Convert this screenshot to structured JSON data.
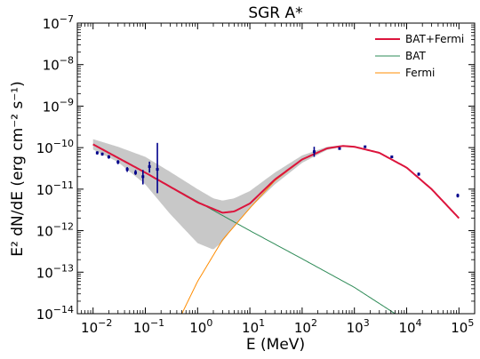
{
  "chart_data": {
    "type": "line",
    "title": "SGR A*",
    "xlabel": "E (MeV)",
    "ylabel": "E² dN/dE (erg cm⁻² s⁻¹)",
    "xscale": "log",
    "yscale": "log",
    "xlim": [
      0.005,
      200000
    ],
    "ylim": [
      1e-14,
      1e-07
    ],
    "x_ticks": [
      0.01,
      0.1,
      1,
      10,
      100,
      1000,
      10000,
      100000
    ],
    "x_tick_labels": [
      {
        "base": "10",
        "exp": "−2"
      },
      {
        "base": "10",
        "exp": "−1"
      },
      {
        "base": "10",
        "exp": "0"
      },
      {
        "base": "10",
        "exp": "1"
      },
      {
        "base": "10",
        "exp": "2"
      },
      {
        "base": "10",
        "exp": "3"
      },
      {
        "base": "10",
        "exp": "4"
      },
      {
        "base": "10",
        "exp": "5"
      }
    ],
    "y_ticks": [
      1e-14,
      1e-13,
      1e-12,
      1e-11,
      1e-10,
      1e-09,
      1e-08,
      1e-07
    ],
    "y_tick_labels": [
      {
        "base": "10",
        "exp": "−14"
      },
      {
        "base": "10",
        "exp": "−13"
      },
      {
        "base": "10",
        "exp": "−12"
      },
      {
        "base": "10",
        "exp": "−11"
      },
      {
        "base": "10",
        "exp": "−10"
      },
      {
        "base": "10",
        "exp": "−9"
      },
      {
        "base": "10",
        "exp": "−8"
      },
      {
        "base": "10",
        "exp": "−7"
      }
    ],
    "grid": false,
    "legend_position": "top-right",
    "series": [
      {
        "name": "BAT+Fermi",
        "color": "#dc143c",
        "x": [
          0.01,
          0.1,
          1,
          3,
          5,
          10,
          30,
          100,
          300,
          600,
          1000,
          3000,
          10000,
          30000,
          100000
        ],
        "y": [
          1.2e-10,
          2.5e-11,
          4.8e-12,
          2.7e-12,
          2.9e-12,
          4.5e-12,
          1.7e-11,
          5.2e-11,
          9.6e-11,
          1.1e-10,
          1.05e-10,
          7.5e-11,
          3.3e-11,
          1e-11,
          2e-12
        ]
      },
      {
        "name": "BAT",
        "color": "#2e8b57",
        "x": [
          0.01,
          0.1,
          1,
          10,
          100,
          1000,
          6000
        ],
        "y": [
          1.2e-10,
          2.5e-11,
          5e-12,
          1e-12,
          2.1e-13,
          4.3e-14,
          1e-14
        ]
      },
      {
        "name": "Fermi",
        "color": "#ff8c00",
        "x": [
          0.5,
          1,
          3,
          10,
          30,
          100,
          300,
          600,
          1000,
          3000,
          10000,
          30000,
          100000
        ],
        "y": [
          1e-14,
          6e-14,
          6e-13,
          3.5e-12,
          1.6e-11,
          5.1e-11,
          9.5e-11,
          1.1e-10,
          1.05e-10,
          7.5e-11,
          3.3e-11,
          1e-11,
          2e-12
        ]
      }
    ],
    "band": {
      "x": [
        0.01,
        0.03,
        0.1,
        0.3,
        1,
        2,
        3,
        5,
        10,
        30,
        100,
        300,
        600,
        1000
      ],
      "y_upper": [
        1.6e-10,
        1.05e-10,
        6e-11,
        2.6e-11,
        1e-11,
        6e-12,
        5.3e-12,
        6e-12,
        9e-12,
        2.5e-11,
        6.5e-11,
        1.05e-10,
        1.15e-10,
        1.1e-10
      ],
      "y_lower": [
        9e-11,
        4.5e-11,
        1.3e-11,
        2.5e-12,
        5e-13,
        3.5e-13,
        5.5e-13,
        1.3e-12,
        3.5e-12,
        1.3e-11,
        4.3e-11,
        8.8e-11,
        1.05e-10,
        1e-10
      ],
      "color": "#c8c8c8"
    },
    "points": {
      "color": "#00008b",
      "x": [
        0.012,
        0.015,
        0.02,
        0.03,
        0.045,
        0.065,
        0.09,
        0.12,
        0.17,
        170,
        520,
        1600,
        5200,
        17000,
        95000
      ],
      "y": [
        7.5e-11,
        7e-11,
        6e-11,
        4.5e-11,
        3e-11,
        2.5e-11,
        2e-11,
        3.5e-11,
        3e-11,
        8e-11,
        9.5e-11,
        1.05e-10,
        6e-11,
        2.3e-11,
        7e-12
      ],
      "y_lo": [
        6.8e-11,
        6.4e-11,
        5.4e-11,
        4e-11,
        2.6e-11,
        2.2e-11,
        1.3e-11,
        2.5e-11,
        8e-12,
        6e-11,
        9e-11,
        1e-10,
        5.6e-11,
        2.1e-11,
        6.3e-12
      ],
      "y_hi": [
        8.2e-11,
        7.6e-11,
        6.6e-11,
        5e-11,
        3.4e-11,
        2.9e-11,
        2.9e-11,
        4.6e-11,
        1.3e-10,
        1.05e-10,
        1e-10,
        1.1e-10,
        6.4e-11,
        2.5e-11,
        7.8e-12
      ]
    }
  }
}
